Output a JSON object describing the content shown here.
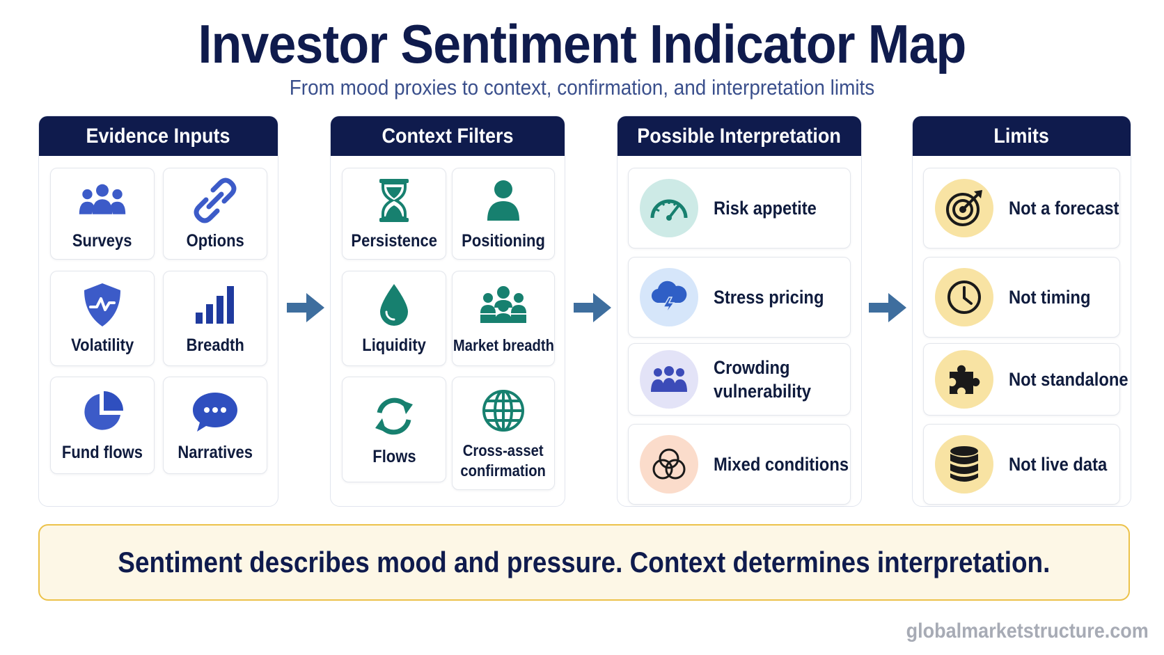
{
  "title": "Investor Sentiment Indicator Map",
  "subtitle": "From mood proxies to context, confirmation, and interpretation limits",
  "columns": [
    {
      "heading": "Evidence Inputs",
      "items": [
        {
          "label": "Surveys",
          "icon": "people-icon",
          "color": "#3c5bc8"
        },
        {
          "label": "Options",
          "icon": "chain-link-icon",
          "color": "#3c5bc8"
        },
        {
          "label": "Volatility",
          "icon": "shield-pulse-icon",
          "color": "#3c5bc8"
        },
        {
          "label": "Breadth",
          "icon": "bar-chart-icon",
          "color": "#1f3a9e"
        },
        {
          "label": "Fund flows",
          "icon": "pie-chart-icon",
          "color": "#3c5bc8"
        },
        {
          "label": "Narratives",
          "icon": "speech-bubble-icon",
          "color": "#2f4fbf"
        }
      ]
    },
    {
      "heading": "Context Filters",
      "items": [
        {
          "label": "Persistence",
          "icon": "hourglass-icon",
          "color": "#17806f"
        },
        {
          "label": "Positioning",
          "icon": "person-icon",
          "color": "#17806f"
        },
        {
          "label": "Liquidity",
          "icon": "water-drop-icon",
          "color": "#17806f"
        },
        {
          "label": "Market breadth",
          "icon": "people-icon",
          "color": "#17806f"
        },
        {
          "label": "Flows",
          "icon": "cycle-arrows-icon",
          "color": "#17806f"
        },
        {
          "label": "Cross-asset\nconfirmation",
          "icon": "globe-icon",
          "color": "#17806f"
        }
      ]
    },
    {
      "heading": "Possible Interpretation",
      "items": [
        {
          "label": "Risk appetite",
          "icon": "gauge-icon",
          "bg": "#cdeae6",
          "color": "#17806f"
        },
        {
          "label": "Stress pricing",
          "icon": "storm-cloud-icon",
          "bg": "#d6e6fa",
          "color": "#2f5fc6"
        },
        {
          "label": "Crowding\nvulnerability",
          "icon": "crowd-icon",
          "bg": "#e3e3f7",
          "color": "#3c4bb8"
        },
        {
          "label": "Mixed conditions",
          "icon": "overlapping-circles-icon",
          "bg": "#fbdccb",
          "color": "#1a1a1a"
        }
      ]
    },
    {
      "heading": "Limits",
      "items": [
        {
          "label": "Not a forecast",
          "icon": "target-icon",
          "bg": "#f8e3a3",
          "color": "#1a1a1a"
        },
        {
          "label": "Not timing",
          "icon": "clock-icon",
          "bg": "#f8e3a3",
          "color": "#1a1a1a"
        },
        {
          "label": "Not standalone",
          "icon": "puzzle-piece-icon",
          "bg": "#f8e3a3",
          "color": "#1a1a1a"
        },
        {
          "label": "Not live data",
          "icon": "database-icon",
          "bg": "#f8e3a3",
          "color": "#1a1a1a"
        }
      ]
    }
  ],
  "arrow_color": "#3e6e9e",
  "banner": "Sentiment describes mood and pressure. Context determines interpretation.",
  "footer": "globalmarketstructure.com"
}
